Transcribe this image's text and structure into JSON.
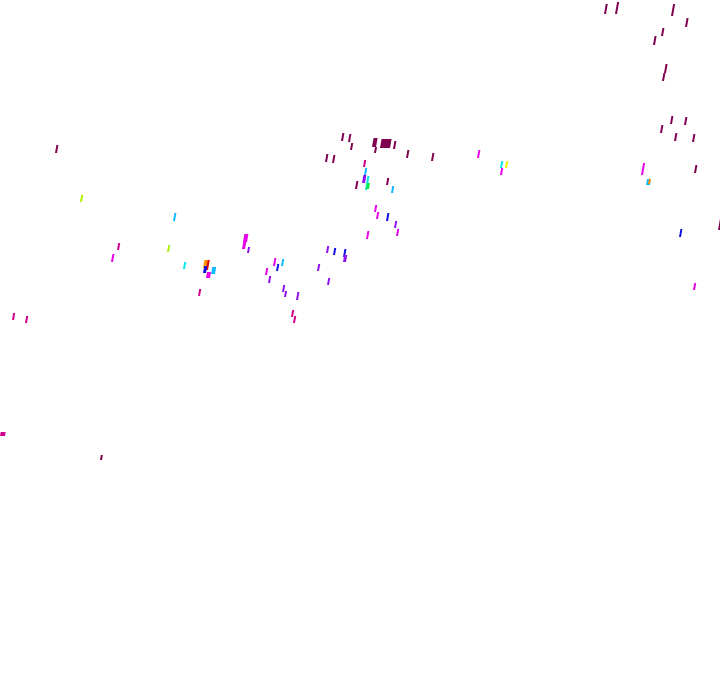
{
  "map": {
    "layer": "precipitation-overlay",
    "palette": {
      "maroon": "#800050",
      "pink": "#d0008a",
      "magenta": "#e800e8",
      "violet": "#9010f0",
      "blue": "#1010e0",
      "cyan": "#10b8ff",
      "aqua": "#00e8e8",
      "green": "#10f040",
      "lime": "#b0f000",
      "yellow": "#f0f000",
      "orange": "#ff9000",
      "red": "#e00000"
    }
  }
}
